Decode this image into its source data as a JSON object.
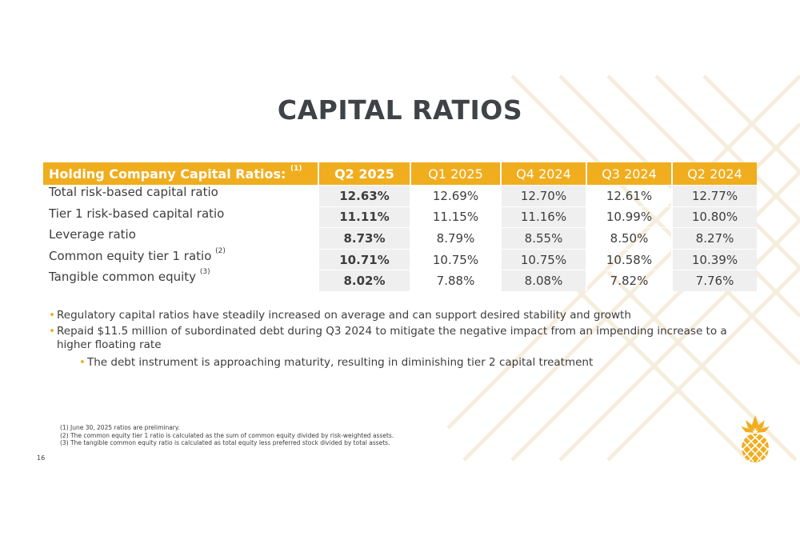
{
  "title": "CAPITAL RATIOS",
  "table": {
    "header": {
      "label": "Holding Company Capital Ratios:",
      "label_note": "(1)",
      "periods": [
        "Q2 2025",
        "Q1 2025",
        "Q4 2024",
        "Q3 2024",
        "Q2 2024"
      ]
    },
    "rows": [
      {
        "label": "Total risk-based capital ratio",
        "note": "",
        "values": [
          "12.63%",
          "12.69%",
          "12.70%",
          "12.61%",
          "12.77%"
        ]
      },
      {
        "label": "Tier 1 risk-based capital ratio",
        "note": "",
        "values": [
          "11.11%",
          "11.15%",
          "11.16%",
          "10.99%",
          "10.80%"
        ]
      },
      {
        "label": "Leverage ratio",
        "note": "",
        "values": [
          "8.73%",
          "8.79%",
          "8.55%",
          "8.50%",
          "8.27%"
        ]
      },
      {
        "label": "Common equity tier 1 ratio",
        "note": "(2)",
        "values": [
          "10.71%",
          "10.75%",
          "10.75%",
          "10.58%",
          "10.39%"
        ]
      },
      {
        "label": "Tangible common equity",
        "note": "(3)",
        "values": [
          "8.02%",
          "7.88%",
          "8.08%",
          "7.82%",
          "7.76%"
        ]
      }
    ]
  },
  "bullets": [
    "Regulatory capital ratios have steadily increased on average and can support desired stability and growth",
    "Repaid $11.5 million of subordinated debt during Q3 2024 to mitigate the negative impact from an impending increase to a higher floating rate"
  ],
  "sub_bullets": [
    "The debt instrument is approaching maturity, resulting in diminishing tier 2 capital treatment"
  ],
  "footnotes": [
    "(1) June 30, 2025 ratios are preliminary.",
    "(2) The common equity tier 1 ratio is calculated as the sum of common equity divided by risk-weighted assets.",
    "(3) The tangible common equity ratio is calculated as total equity less preferred stock divided by total assets."
  ],
  "page_number": "16",
  "colors": {
    "accent": "#f0ad1e",
    "title": "#3f4246",
    "shade": "#efefef",
    "text": "#3d3d3d"
  },
  "icons": {
    "logo": "pineapple-logo"
  }
}
